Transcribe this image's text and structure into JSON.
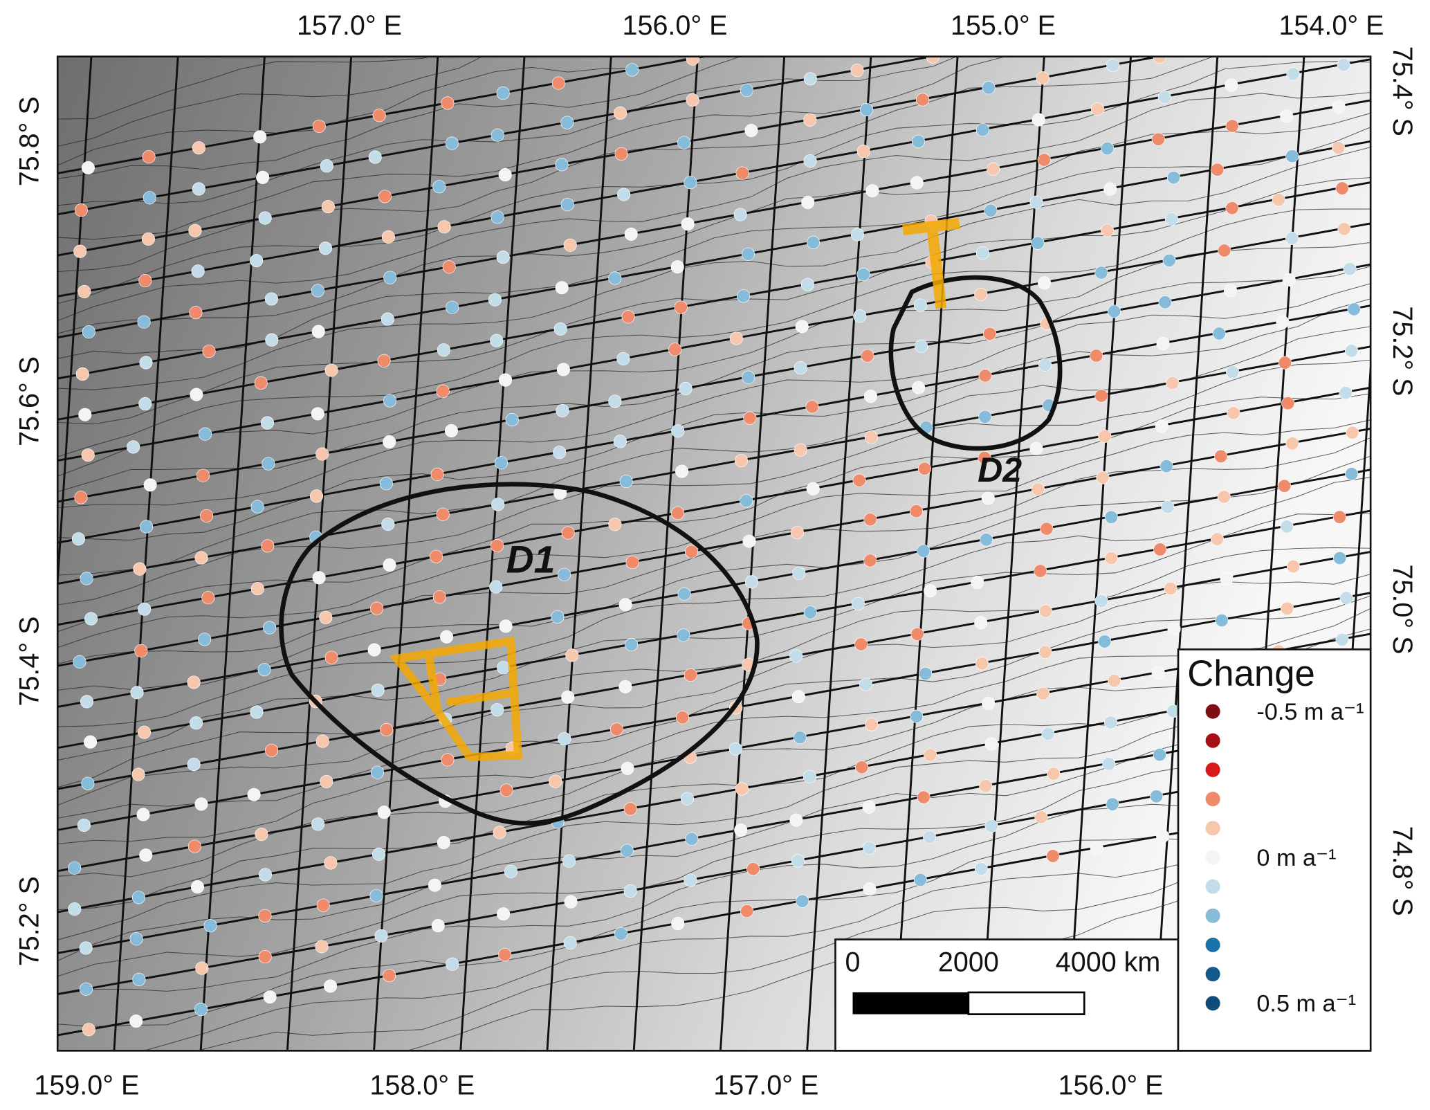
{
  "map": {
    "top_labels": [
      "157.0° E",
      "156.0° E",
      "155.0° E",
      "154.0° E"
    ],
    "bottom_labels": [
      "159.0° E",
      "158.0° E",
      "157.0° E",
      "156.0° E"
    ],
    "left_labels": [
      "75.8° S",
      "75.6° S",
      "75.4° S",
      "75.2° S"
    ],
    "right_labels": [
      "75.4° S",
      "75.2° S",
      "75.0° S",
      "74.8° S"
    ],
    "regions": [
      "D1",
      "D2"
    ],
    "legend": {
      "title": "Change",
      "entries": [
        {
          "color": "#7f0d14",
          "label": "-0.5 m a⁻¹"
        },
        {
          "color": "#a50f15"
        },
        {
          "color": "#d7191c"
        },
        {
          "color": "#ef8a6b"
        },
        {
          "color": "#f6c6ad"
        },
        {
          "color": "#f4f4f4",
          "label": "0 m a⁻¹"
        },
        {
          "color": "#c3dcea"
        },
        {
          "color": "#86bcd9"
        },
        {
          "color": "#1a73a8"
        },
        {
          "color": "#13598a"
        },
        {
          "color": "#0f4c78",
          "label": "0.5 m a⁻¹"
        }
      ]
    },
    "scale_bar": {
      "labels": [
        "0",
        "2000",
        "4000 km"
      ]
    }
  }
}
